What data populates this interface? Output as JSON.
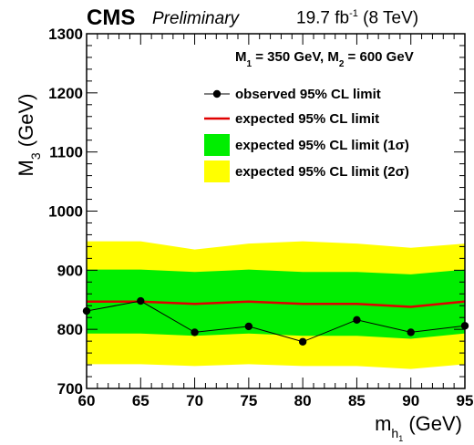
{
  "header": {
    "experiment": "CMS",
    "status": "Preliminary",
    "lumi_prefix": "19.7 fb",
    "lumi_exp": "-1",
    "lumi_suffix": " (8 TeV)"
  },
  "colors": {
    "observed": "#000000",
    "expected": "#e00000",
    "band_1sigma": "#00ee00",
    "band_2sigma": "#ffff00"
  },
  "chart_data": {
    "type": "line",
    "title": "",
    "ylabel": "M3 (GeV)",
    "xlabel": "mh1 (GeV)",
    "xlim": [
      60,
      95
    ],
    "ylim": [
      700,
      1300
    ],
    "xticks": [
      60,
      65,
      70,
      75,
      80,
      85,
      90,
      95
    ],
    "yticks": [
      700,
      800,
      900,
      1000,
      1100,
      1200,
      1300
    ],
    "annotation": "M1 = 350 GeV, M2 = 600 GeV",
    "legend_position": "top-right",
    "x": [
      60,
      65,
      70,
      75,
      80,
      85,
      90,
      95
    ],
    "series": [
      {
        "name": "observed 95% CL limit",
        "kind": "points-line",
        "values": [
          831,
          848,
          795,
          805,
          779,
          816,
          795,
          806
        ]
      },
      {
        "name": "expected 95% CL limit",
        "kind": "line",
        "values": [
          847,
          847,
          843,
          847,
          843,
          843,
          838,
          847
        ]
      },
      {
        "name": "expected 95% CL limit (1σ)",
        "kind": "band",
        "low": [
          793,
          793,
          789,
          793,
          789,
          789,
          784,
          793
        ],
        "high": [
          901,
          901,
          897,
          901,
          897,
          897,
          893,
          901
        ]
      },
      {
        "name": "expected 95% CL limit (2σ)",
        "kind": "band",
        "low": [
          741,
          741,
          738,
          741,
          738,
          738,
          733,
          741
        ],
        "high": [
          949,
          949,
          935,
          945,
          949,
          945,
          938,
          945
        ]
      }
    ]
  }
}
